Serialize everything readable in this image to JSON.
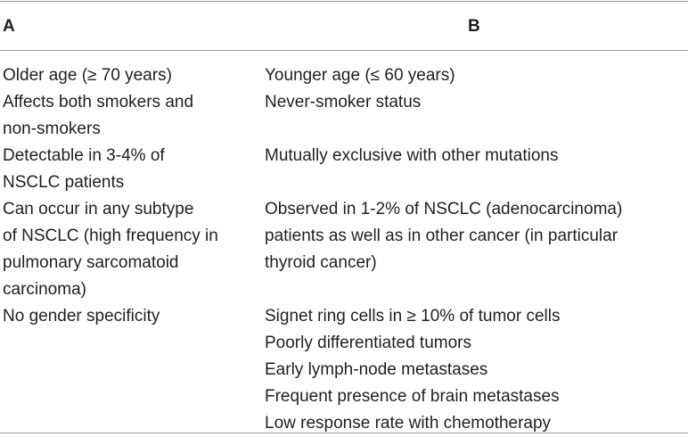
{
  "header": {
    "col_a": "A",
    "col_b": "B"
  },
  "col_a": [
    "Older age (≥ 70 years)",
    "Affects both smokers and\nnon-smokers",
    "Detectable in 3-4% of\nNSCLC patients",
    "Can occur in any subtype\nof NSCLC (high frequency in\npulmonary sarcomatoid\ncarcinoma)",
    "No gender specificity"
  ],
  "col_b": [
    "Younger age (≤ 60 years)",
    "Never-smoker status",
    "Mutually exclusive with other mutations",
    "Observed in 1-2% of NSCLC (adenocarcinoma)\npatients as well as in other cancer (in particular\nthyroid cancer)",
    "Signet ring cells in ≥ 10% of tumor cells\nPoorly differentiated tumors\nEarly lymph-node metastases\nFrequent presence of brain metastases\nLow response rate with chemotherapy"
  ]
}
